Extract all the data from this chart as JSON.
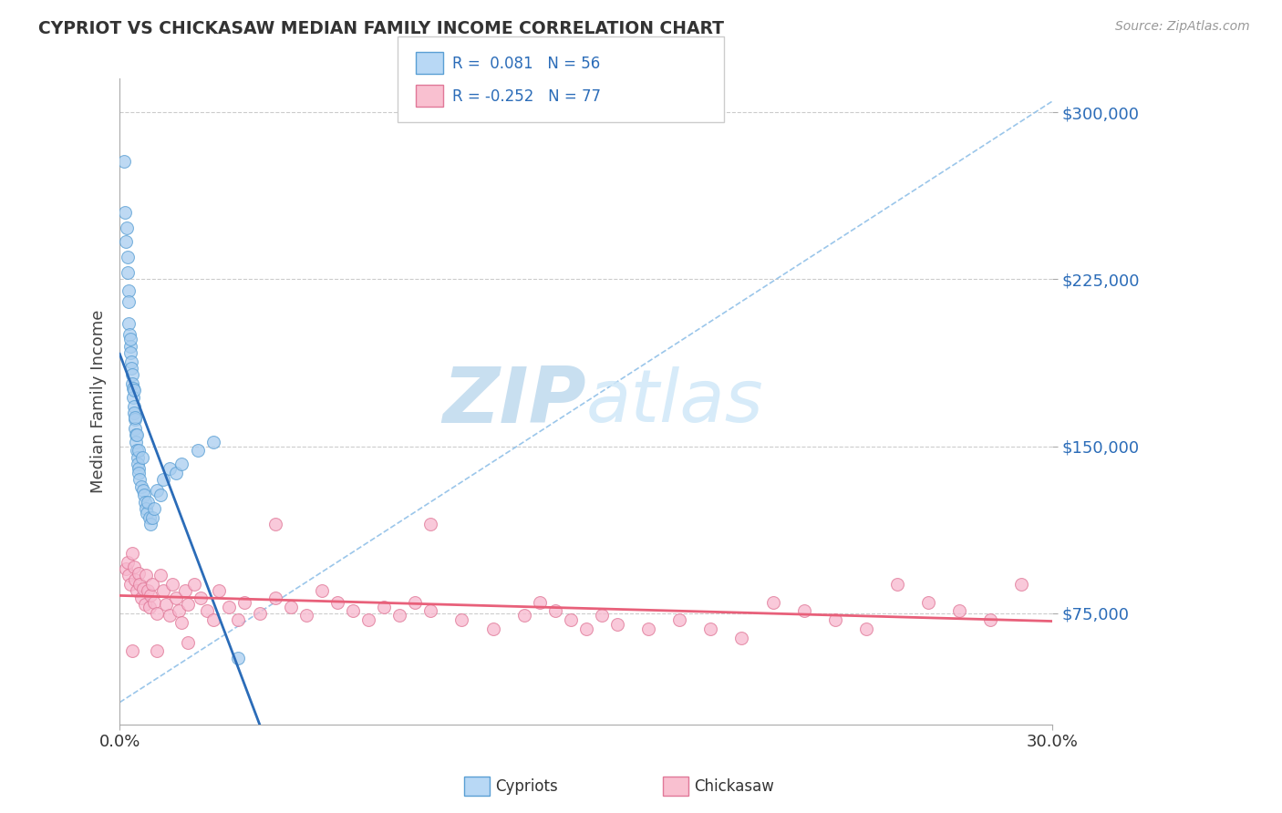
{
  "title": "CYPRIOT VS CHICKASAW MEDIAN FAMILY INCOME CORRELATION CHART",
  "source_text": "Source: ZipAtlas.com",
  "ylabel": "Median Family Income",
  "yticks": [
    75000,
    150000,
    225000,
    300000
  ],
  "ytick_labels": [
    "$75,000",
    "$150,000",
    "$225,000",
    "$300,000"
  ],
  "xmin": 0.0,
  "xmax": 30.0,
  "ymin": 25000,
  "ymax": 315000,
  "cypriot_color": "#A8CDEF",
  "cypriot_edge": "#5A9FD4",
  "chickasaw_color": "#F7B8CE",
  "chickasaw_edge": "#E07898",
  "blue_line_color": "#2B6CB8",
  "pink_line_color": "#E8607A",
  "diag_line_color": "#90C0E8",
  "legend_blue_color": "#B8D8F5",
  "legend_pink_color": "#F9C0D0",
  "R_cypriot": 0.081,
  "N_cypriot": 56,
  "R_chickasaw": -0.252,
  "N_chickasaw": 77,
  "watermark_zip": "ZIP",
  "watermark_atlas": "atlas",
  "watermark_color": "#C8DFF0",
  "cypriot_x": [
    0.15,
    0.18,
    0.2,
    0.22,
    0.25,
    0.25,
    0.28,
    0.3,
    0.3,
    0.32,
    0.33,
    0.35,
    0.35,
    0.37,
    0.38,
    0.4,
    0.4,
    0.42,
    0.43,
    0.45,
    0.45,
    0.47,
    0.48,
    0.5,
    0.5,
    0.52,
    0.53,
    0.55,
    0.55,
    0.57,
    0.58,
    0.6,
    0.6,
    0.62,
    0.65,
    0.7,
    0.72,
    0.75,
    0.78,
    0.8,
    0.85,
    0.88,
    0.9,
    0.95,
    1.0,
    1.05,
    1.1,
    1.2,
    1.3,
    1.4,
    1.6,
    1.8,
    2.0,
    2.5,
    3.0,
    3.8
  ],
  "cypriot_y": [
    278000,
    255000,
    242000,
    248000,
    235000,
    228000,
    220000,
    215000,
    205000,
    200000,
    195000,
    192000,
    198000,
    188000,
    185000,
    182000,
    178000,
    176000,
    172000,
    168000,
    175000,
    165000,
    162000,
    158000,
    163000,
    155000,
    152000,
    148000,
    155000,
    145000,
    142000,
    140000,
    148000,
    138000,
    135000,
    132000,
    145000,
    130000,
    128000,
    125000,
    122000,
    120000,
    125000,
    118000,
    115000,
    118000,
    122000,
    130000,
    128000,
    135000,
    140000,
    138000,
    142000,
    148000,
    152000,
    55000
  ],
  "chickasaw_x": [
    0.2,
    0.25,
    0.3,
    0.35,
    0.4,
    0.45,
    0.5,
    0.55,
    0.6,
    0.65,
    0.7,
    0.75,
    0.8,
    0.85,
    0.9,
    0.95,
    1.0,
    1.05,
    1.1,
    1.2,
    1.3,
    1.4,
    1.5,
    1.6,
    1.7,
    1.8,
    1.9,
    2.0,
    2.1,
    2.2,
    2.4,
    2.6,
    2.8,
    3.0,
    3.2,
    3.5,
    3.8,
    4.0,
    4.5,
    5.0,
    5.5,
    6.0,
    6.5,
    7.0,
    7.5,
    8.0,
    8.5,
    9.0,
    9.5,
    10.0,
    11.0,
    12.0,
    13.0,
    13.5,
    14.0,
    14.5,
    15.0,
    15.5,
    16.0,
    17.0,
    18.0,
    19.0,
    20.0,
    21.0,
    22.0,
    23.0,
    24.0,
    25.0,
    26.0,
    27.0,
    28.0,
    29.0,
    0.4,
    1.2,
    2.2,
    5.0,
    10.0
  ],
  "chickasaw_y": [
    95000,
    98000,
    92000,
    88000,
    102000,
    96000,
    90000,
    85000,
    93000,
    88000,
    82000,
    86000,
    79000,
    92000,
    85000,
    78000,
    83000,
    88000,
    80000,
    75000,
    92000,
    85000,
    79000,
    74000,
    88000,
    82000,
    76000,
    71000,
    85000,
    79000,
    88000,
    82000,
    76000,
    72000,
    85000,
    78000,
    72000,
    80000,
    75000,
    82000,
    78000,
    74000,
    85000,
    80000,
    76000,
    72000,
    78000,
    74000,
    80000,
    76000,
    72000,
    68000,
    74000,
    80000,
    76000,
    72000,
    68000,
    74000,
    70000,
    68000,
    72000,
    68000,
    64000,
    80000,
    76000,
    72000,
    68000,
    88000,
    80000,
    76000,
    72000,
    88000,
    58000,
    58000,
    62000,
    115000,
    115000
  ],
  "dot_size": 100,
  "dot_alpha": 0.75
}
